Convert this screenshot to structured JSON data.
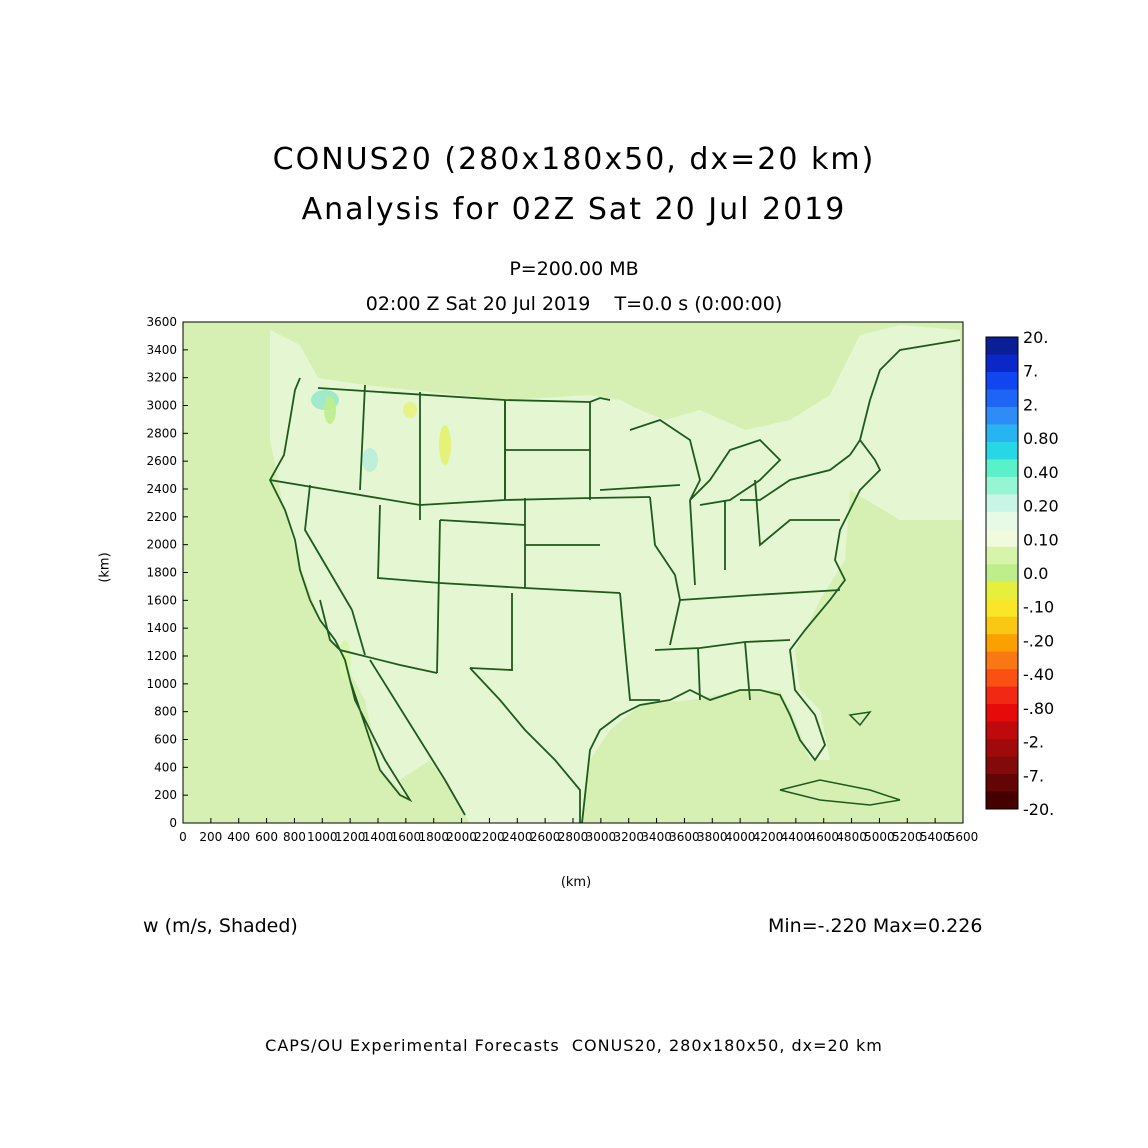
{
  "title_line1": "CONUS20 (280x180x50, dx=20 km)",
  "title_line2": "Analysis for 02Z Sat 20 Jul 2019",
  "level_text": "P=200.00 MB",
  "time_text": "02:00 Z Sat 20 Jul 2019    T=0.0 s (0:00:00)",
  "axes": {
    "x_unit": "(km)",
    "y_unit": "(km)",
    "x_ticks": [
      "0",
      "200",
      "400",
      "600",
      "800",
      "1000",
      "1200",
      "1400",
      "1600",
      "1800",
      "2000",
      "2200",
      "2400",
      "2600",
      "2800",
      "3000",
      "3200",
      "3400",
      "3600",
      "3800",
      "4000",
      "4200",
      "4400",
      "4600",
      "4800",
      "5000",
      "5200",
      "5400",
      "5600"
    ],
    "y_ticks": [
      "0",
      "200",
      "400",
      "600",
      "800",
      "1000",
      "1200",
      "1400",
      "1600",
      "1800",
      "2000",
      "2200",
      "2400",
      "2600",
      "2800",
      "3000",
      "3200",
      "3400",
      "3600"
    ],
    "x_range": [
      0,
      5600
    ],
    "y_range": [
      0,
      3600
    ]
  },
  "colorbar": {
    "labels": [
      "20.",
      "7.",
      "2.",
      "0.80",
      "0.40",
      "0.20",
      "0.10",
      "0.0",
      "-.10",
      "-.20",
      "-.40",
      "-.80",
      "-2.",
      "-7.",
      "-20."
    ],
    "colors": [
      "#0a1e96",
      "#0a28c8",
      "#0f46f0",
      "#1e64f5",
      "#2d8cf5",
      "#28b4f0",
      "#28d7e6",
      "#5af0c8",
      "#96f5d2",
      "#c8f5e6",
      "#e6fae6",
      "#f0fadc",
      "#d7f5aa",
      "#beee8c",
      "#e6f03c",
      "#fae628",
      "#fac814",
      "#faa000",
      "#fa7814",
      "#fa5014",
      "#f02814",
      "#e60a0a",
      "#be0a0a",
      "#a00a0a",
      "#820a0a",
      "#640505",
      "#460000"
    ]
  },
  "field_label": "w (m/s, Shaded)",
  "min_max": "Min=-.220 Max=0.226",
  "footer": "CAPS/OU Experimental Forecasts  CONUS20, 280x180x50, dx=20 km",
  "colors": {
    "map_background": "#d6f0b4",
    "land_light": "#e6f7d6",
    "boundary_line": "#1e5a1e"
  }
}
